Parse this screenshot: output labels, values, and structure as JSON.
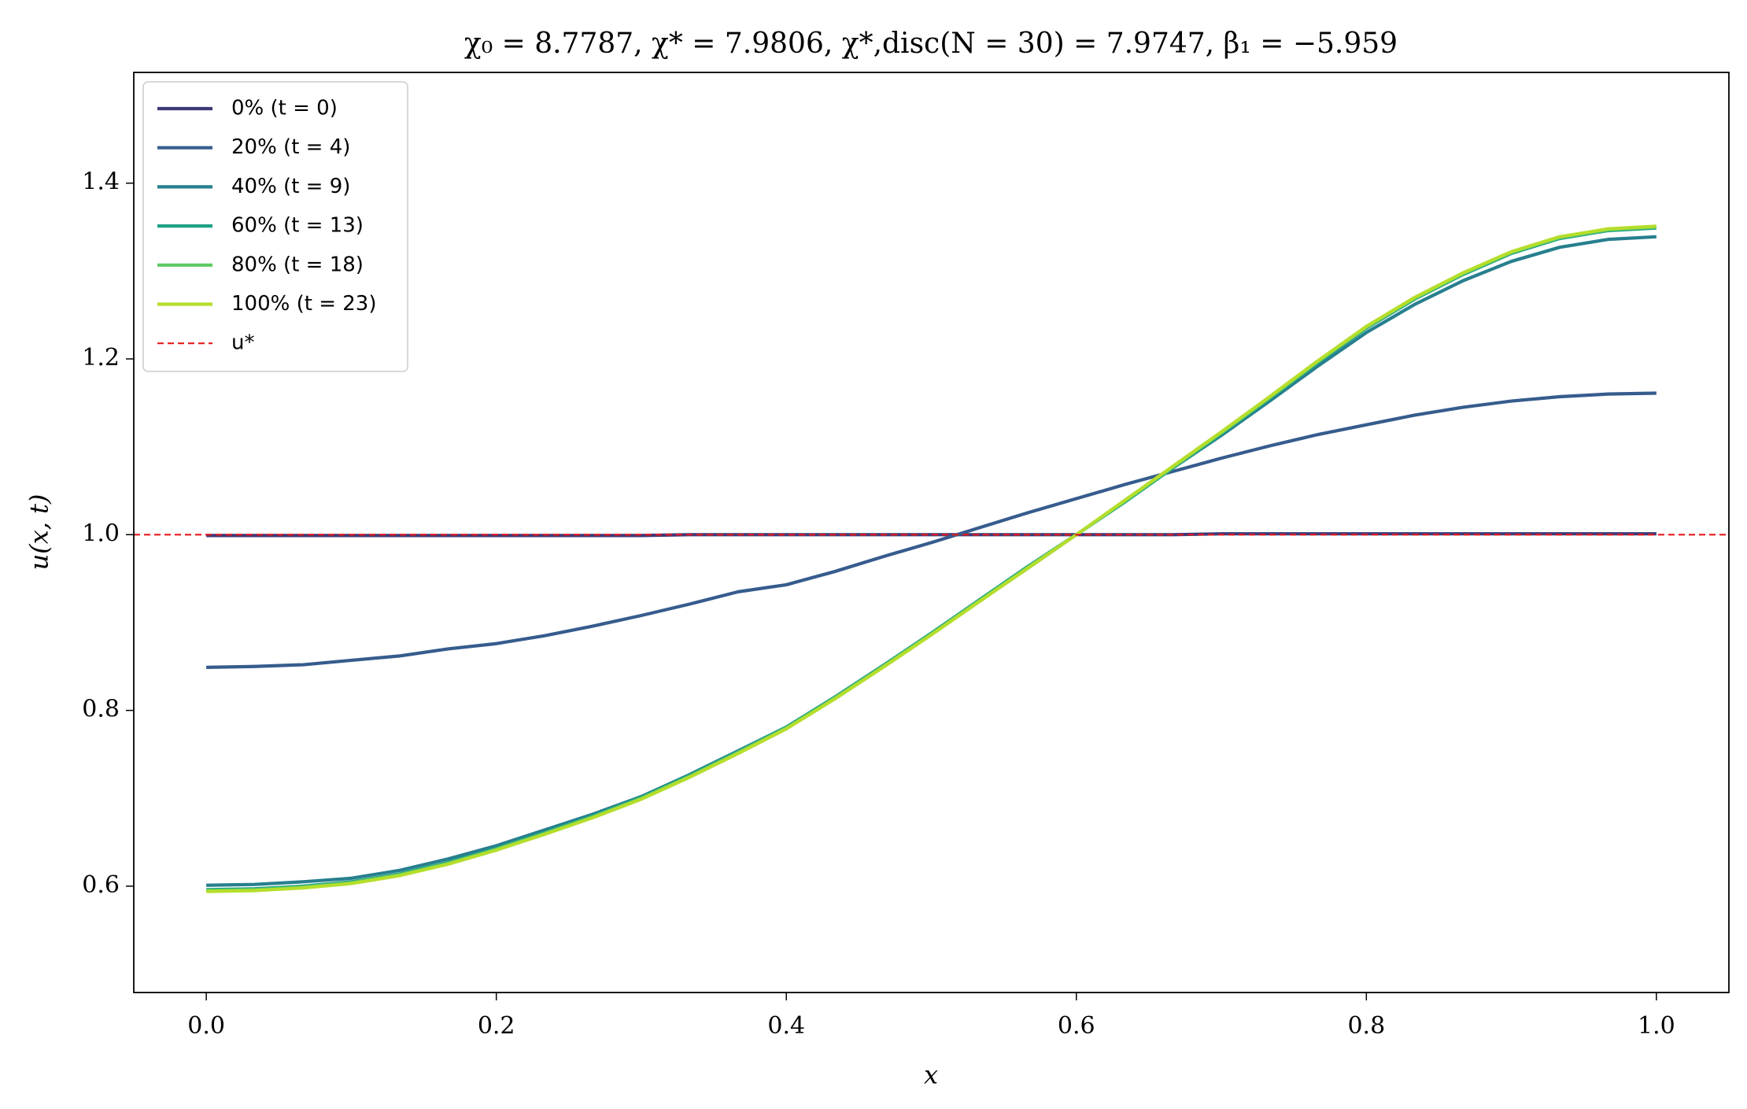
{
  "chart_data": {
    "type": "line",
    "title": "χ₀ = 8.7787,  χ* = 7.9806,  χ*,disc(N = 30) = 7.9747,  β₁ = −5.959",
    "x_label": "x",
    "y_label": "u(x, t)",
    "x": [
      0,
      0.0333,
      0.0667,
      0.1,
      0.1333,
      0.1667,
      0.2,
      0.2333,
      0.2667,
      0.3,
      0.3333,
      0.3667,
      0.4,
      0.4333,
      0.4667,
      0.5,
      0.5333,
      0.5667,
      0.6,
      0.6333,
      0.6667,
      0.7,
      0.7333,
      0.7667,
      0.8,
      0.8333,
      0.8667,
      0.9,
      0.9333,
      0.9667,
      1
    ],
    "series": [
      {
        "name": "0% (t = 0)",
        "color": "#3e3a78",
        "values": [
          0.999,
          0.999,
          0.999,
          0.999,
          0.999,
          0.999,
          0.999,
          0.999,
          0.999,
          0.999,
          1.0,
          1.0,
          1.0,
          1.0,
          1.0,
          1.0,
          1.0,
          1.0,
          1.0,
          1.0,
          1.0,
          1.001,
          1.001,
          1.001,
          1.001,
          1.001,
          1.001,
          1.001,
          1.001,
          1.001,
          1.001
        ]
      },
      {
        "name": "20% (t = 4)",
        "color": "#365c8d",
        "values": [
          0.849,
          0.85,
          0.852,
          0.857,
          0.862,
          0.87,
          0.876,
          0.885,
          0.896,
          0.908,
          0.921,
          0.935,
          0.943,
          0.958,
          0.975,
          0.991,
          1.008,
          1.025,
          1.041,
          1.057,
          1.072,
          1.087,
          1.101,
          1.114,
          1.125,
          1.136,
          1.145,
          1.152,
          1.157,
          1.16,
          1.161
        ]
      },
      {
        "name": "40% (t = 9)",
        "color": "#277f8e",
        "values": [
          0.601,
          0.602,
          0.605,
          0.609,
          0.618,
          0.631,
          0.646,
          0.664,
          0.682,
          0.702,
          0.727,
          0.754,
          0.781,
          0.815,
          0.851,
          0.887,
          0.925,
          0.962,
          1.0,
          1.038,
          1.076,
          1.113,
          1.152,
          1.192,
          1.23,
          1.262,
          1.289,
          1.311,
          1.327,
          1.336,
          1.339
        ]
      },
      {
        "name": "60% (t = 13)",
        "color": "#1fa187",
        "values": [
          0.596,
          0.597,
          0.6,
          0.605,
          0.614,
          0.627,
          0.643,
          0.661,
          0.68,
          0.701,
          0.726,
          0.753,
          0.781,
          0.815,
          0.851,
          0.888,
          0.926,
          0.964,
          1.0,
          1.037,
          1.076,
          1.115,
          1.155,
          1.196,
          1.235,
          1.268,
          1.296,
          1.32,
          1.337,
          1.346,
          1.349
        ]
      },
      {
        "name": "80% (t = 18)",
        "color": "#5ec962",
        "values": [
          0.595,
          0.596,
          0.599,
          0.604,
          0.613,
          0.626,
          0.642,
          0.66,
          0.679,
          0.7,
          0.725,
          0.752,
          0.78,
          0.814,
          0.85,
          0.887,
          0.925,
          0.963,
          1.0,
          1.038,
          1.077,
          1.116,
          1.156,
          1.197,
          1.236,
          1.269,
          1.297,
          1.321,
          1.338,
          1.347,
          1.35
        ]
      },
      {
        "name": "100% (t = 23)",
        "color": "#b5de2b",
        "values": [
          0.594,
          0.595,
          0.598,
          0.603,
          0.612,
          0.625,
          0.641,
          0.659,
          0.678,
          0.699,
          0.724,
          0.751,
          0.779,
          0.813,
          0.849,
          0.886,
          0.924,
          0.962,
          1.0,
          1.039,
          1.078,
          1.117,
          1.157,
          1.198,
          1.237,
          1.27,
          1.298,
          1.322,
          1.339,
          1.348,
          1.351
        ]
      }
    ],
    "reference_line": {
      "name": "u*",
      "value": 1.0,
      "color": "#e41a1c",
      "style": "dashed"
    },
    "xlim": [
      -0.05,
      1.05
    ],
    "ylim": [
      0.479,
      1.526
    ],
    "xticks": [
      {
        "value": 0,
        "label": "0.0"
      },
      0.2,
      0.4,
      0.6,
      0.8,
      {
        "value": 1,
        "label": "1.0"
      }
    ],
    "yticks": [
      0.6,
      0.8,
      {
        "value": 1,
        "label": "1.0"
      },
      1.2,
      1.4
    ],
    "legend": "upper left",
    "grid": false
  }
}
